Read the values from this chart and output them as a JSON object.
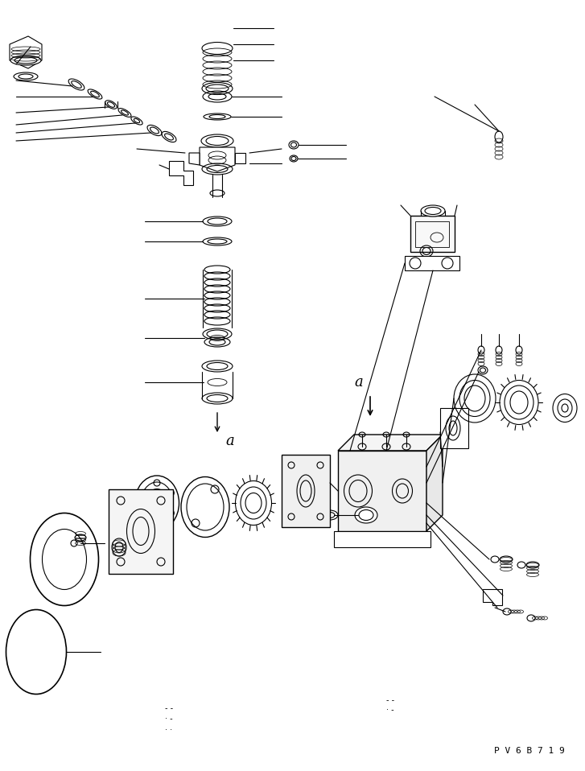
{
  "background_color": "#ffffff",
  "line_color": "#000000",
  "watermark_text": "P V 6 B 7 1 9",
  "fig_width": 7.27,
  "fig_height": 9.58,
  "dpi": 100
}
